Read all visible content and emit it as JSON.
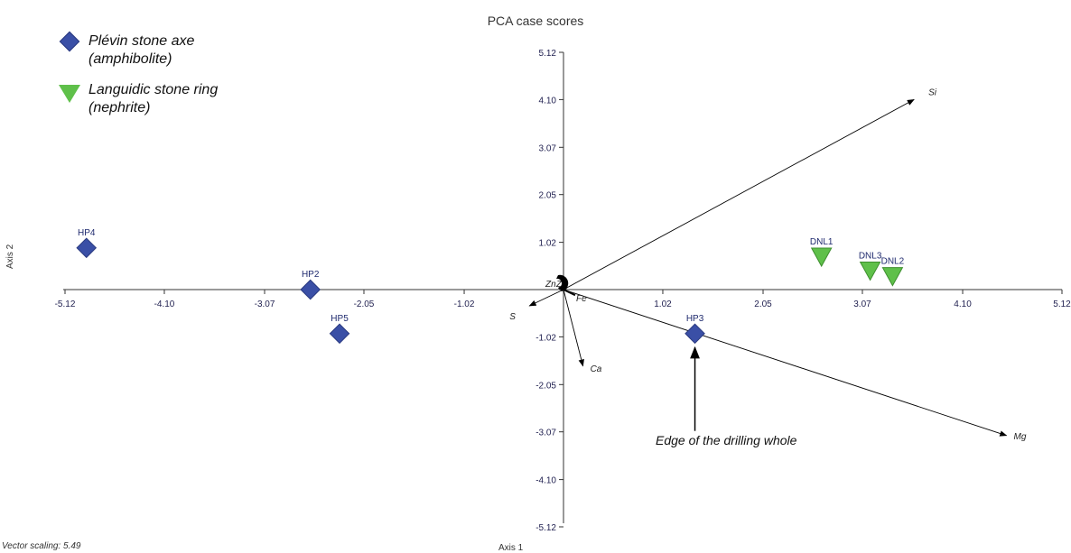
{
  "chart_data": {
    "type": "scatter",
    "title": "PCA case scores",
    "xlabel": "Axis 1",
    "ylabel": "Axis 2",
    "xlim": [
      -5.12,
      5.12
    ],
    "ylim": [
      -5.12,
      5.12
    ],
    "x_ticks": [
      -5.12,
      -4.1,
      -3.07,
      -2.05,
      -1.02,
      1.02,
      2.05,
      3.07,
      4.1,
      5.12
    ],
    "x_tick_labels": [
      "-5.12",
      "-4.10",
      "-3.07",
      "-2.05",
      "-1.02",
      "1.02",
      "2.05",
      "3.07",
      "4.10",
      "5.12"
    ],
    "y_ticks": [
      5.12,
      4.1,
      3.07,
      2.05,
      1.02,
      -1.02,
      -2.05,
      -3.07,
      -4.1,
      -5.12
    ],
    "y_tick_labels": [
      "5.12",
      "4.10",
      "3.07",
      "2.05",
      "1.02",
      "-1.02",
      "-2.05",
      "-3.07",
      "-4.10",
      "-5.12"
    ],
    "grid": false,
    "legend_position": "top-left",
    "series": [
      {
        "name_lines": [
          "Plévin stone axe",
          "(amphibolite)"
        ],
        "marker": "diamond",
        "color": "#3a4fa6",
        "points": [
          {
            "label": "HP4",
            "x": -4.9,
            "y": 0.9
          },
          {
            "label": "HP2",
            "x": -2.6,
            "y": 0.0
          },
          {
            "label": "HP5",
            "x": -2.3,
            "y": -0.95
          },
          {
            "label": "HP3",
            "x": 1.35,
            "y": -0.95
          }
        ]
      },
      {
        "name_lines": [
          "Languidic stone ring",
          "(nephrite)"
        ],
        "marker": "triangle-down",
        "color": "#5fc04a",
        "points": [
          {
            "label": "DNL1",
            "x": 2.65,
            "y": 0.7
          },
          {
            "label": "DNL3",
            "x": 3.15,
            "y": 0.4
          },
          {
            "label": "DNL2",
            "x": 3.38,
            "y": 0.28
          }
        ]
      }
    ],
    "vectors": [
      {
        "label": "Si",
        "x": 3.6,
        "y": 4.1
      },
      {
        "label": "Mg",
        "x": 4.55,
        "y": -3.15
      },
      {
        "label": "Ca",
        "x": 0.2,
        "y": -1.65
      },
      {
        "label": "S",
        "x": -0.35,
        "y": -0.35
      },
      {
        "label": "Fe",
        "x": 0.12,
        "y": -0.12
      },
      {
        "label": "Zn",
        "x": -0.05,
        "y": 0.04
      },
      {
        "label": "Zr",
        "x": 0.03,
        "y": 0.04
      }
    ],
    "vector_scaling": "Vector scaling: 5.49",
    "annotation": {
      "text": "Edge of the drilling whole",
      "x": 1.35,
      "y": -3.05,
      "to_x": 1.35,
      "to_y": -1.25
    }
  }
}
